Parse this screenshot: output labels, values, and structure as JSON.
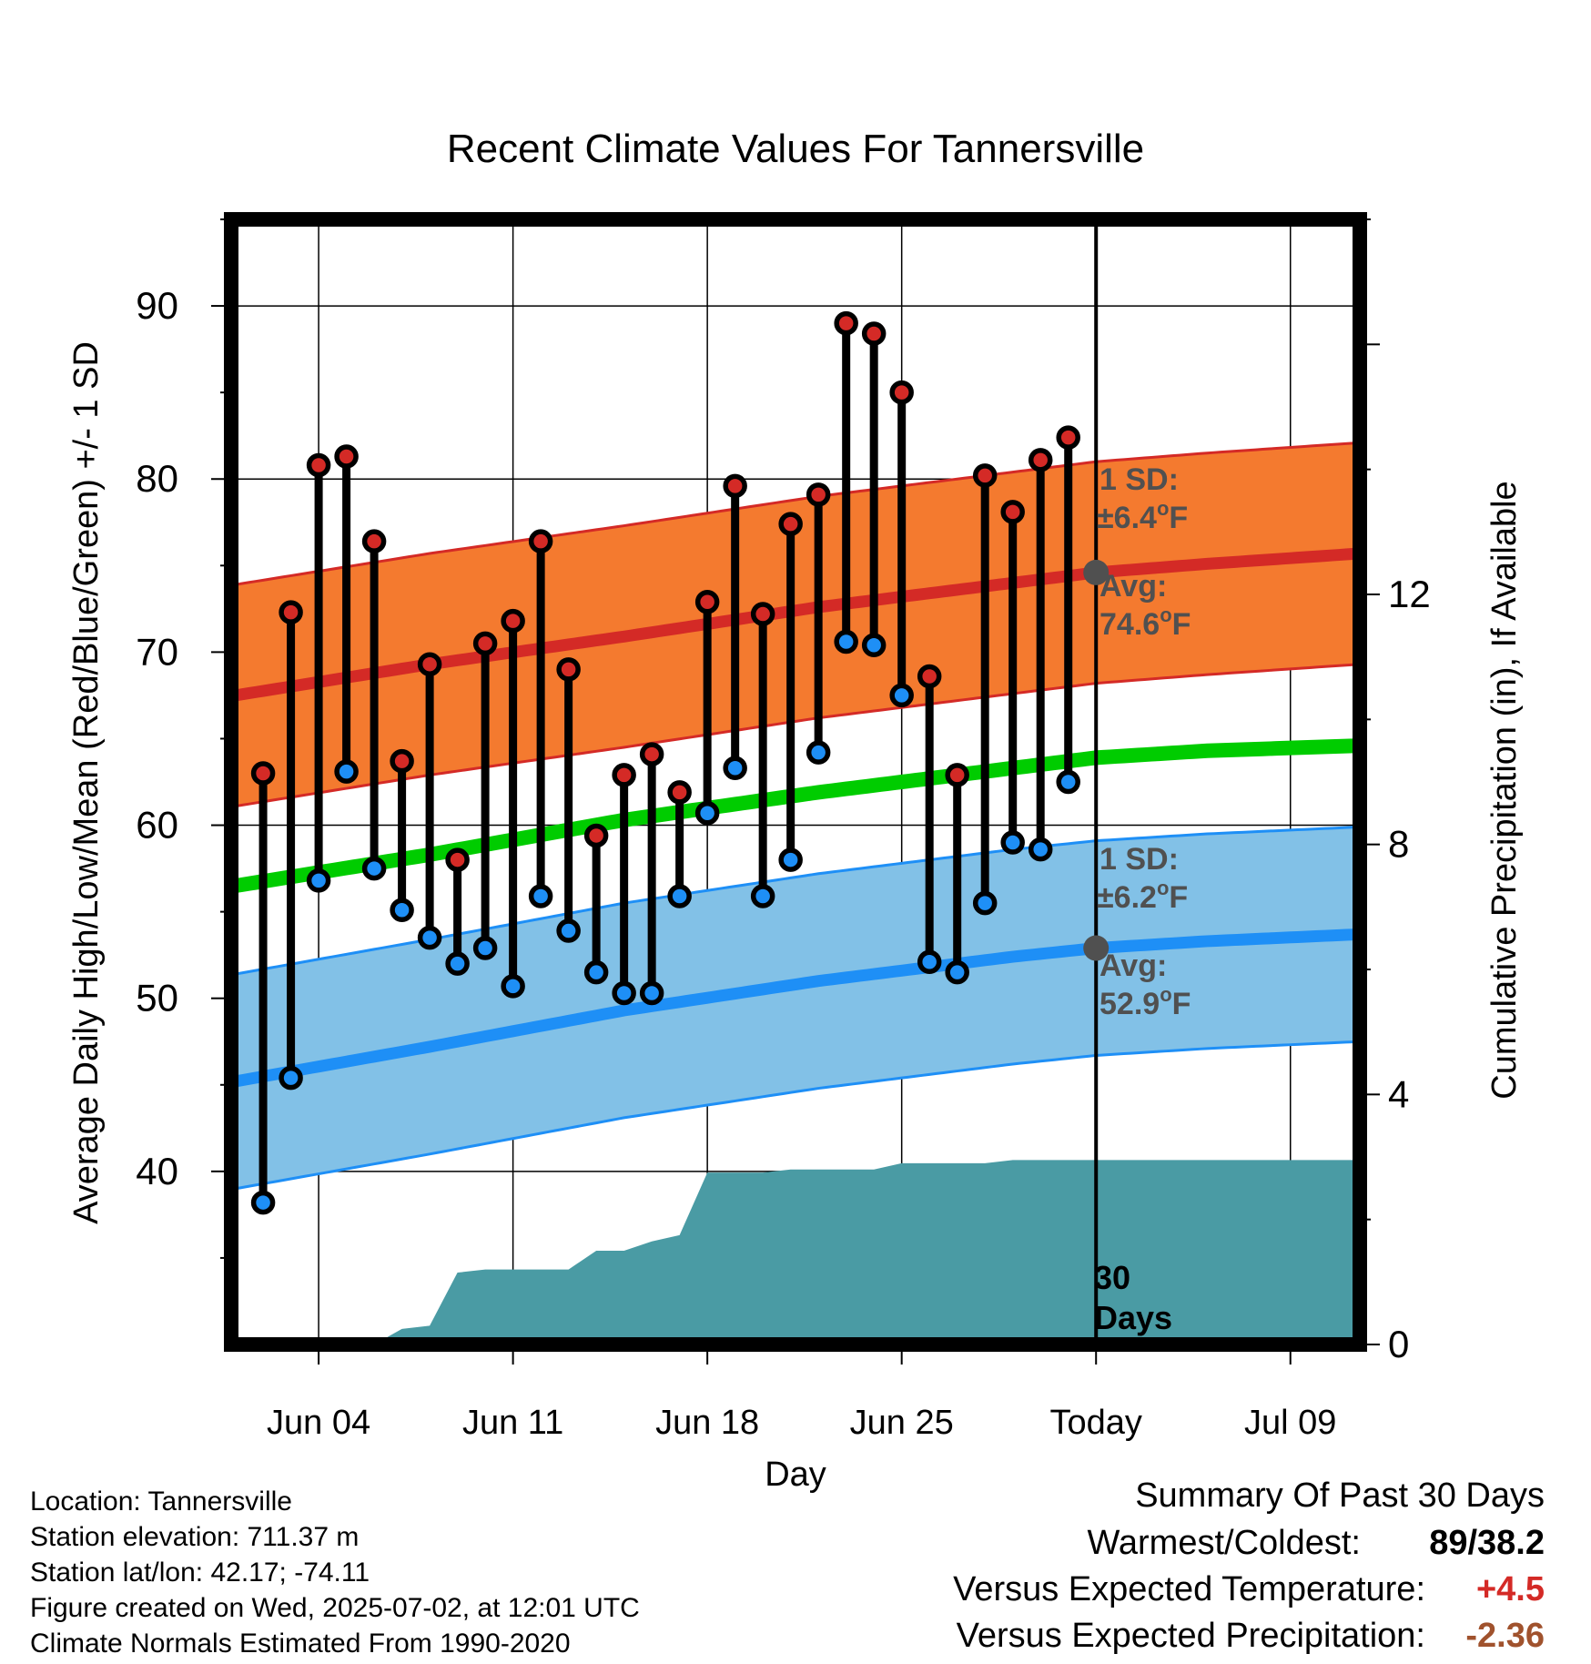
{
  "chart_data": {
    "type": "line",
    "title": "Recent Climate Values For Tannersville",
    "xlabel": "Day",
    "ylabel_left": "Average Daily High/Low/Mean (Red/Blue/Green) +/- 1 SD",
    "ylabel_right": "Cumulative Precipitation (in), If Available",
    "ylim_left": [
      30,
      95
    ],
    "ylim_right": [
      0,
      18
    ],
    "x_ticks": [
      {
        "day": 4,
        "label": "Jun 04"
      },
      {
        "day": 11,
        "label": "Jun 11"
      },
      {
        "day": 18,
        "label": "Jun 18"
      },
      {
        "day": 25,
        "label": "Jun 25"
      },
      {
        "day": 32,
        "label": "Today"
      },
      {
        "day": 39,
        "label": "Jul 09"
      }
    ],
    "y_ticks_left": [
      40,
      50,
      60,
      70,
      80,
      90
    ],
    "y_ticks_right": [
      0,
      4,
      8,
      12
    ],
    "xlim": [
      0.85,
      41.5
    ],
    "today": 32,
    "days": [
      2,
      3,
      4,
      5,
      6,
      7,
      8,
      9,
      10,
      11,
      12,
      13,
      14,
      15,
      16,
      17,
      18,
      19,
      20,
      21,
      22,
      23,
      24,
      25,
      26,
      27,
      28,
      29,
      30,
      31
    ],
    "observed_high": [
      63.0,
      72.3,
      80.8,
      81.3,
      76.4,
      63.7,
      69.3,
      58.0,
      70.5,
      71.8,
      76.4,
      69.0,
      59.4,
      62.9,
      64.1,
      61.9,
      72.9,
      79.6,
      72.2,
      77.4,
      79.1,
      89.0,
      88.4,
      85.0,
      68.6,
      62.9,
      80.2,
      78.1,
      81.1,
      82.4
    ],
    "observed_low": [
      38.2,
      45.4,
      56.8,
      63.1,
      57.5,
      55.1,
      53.5,
      52.0,
      52.9,
      50.7,
      55.9,
      53.9,
      51.5,
      50.3,
      50.3,
      55.9,
      60.7,
      63.3,
      55.9,
      58.0,
      64.2,
      70.6,
      70.4,
      67.5,
      52.1,
      51.5,
      55.5,
      59.0,
      58.6,
      62.5
    ],
    "normal_high": {
      "days": [
        1,
        8,
        15,
        22,
        29,
        32,
        36,
        41.5
      ],
      "values": [
        67.5,
        69.3,
        70.9,
        72.6,
        74.0,
        74.6,
        75.1,
        75.7
      ]
    },
    "normal_low": {
      "days": [
        1,
        8,
        15,
        22,
        29,
        32,
        36,
        41.5
      ],
      "values": [
        45.2,
        47.2,
        49.3,
        51.0,
        52.4,
        52.9,
        53.3,
        53.7
      ]
    },
    "normal_mean": {
      "days": [
        1,
        8,
        15,
        22,
        29,
        32,
        36,
        41.5
      ],
      "values": [
        56.5,
        58.3,
        60.3,
        61.9,
        63.3,
        63.9,
        64.3,
        64.6
      ]
    },
    "sd_high": 6.4,
    "sd_low": 6.2,
    "precip_cumulative": {
      "days": [
        1,
        6,
        7,
        8,
        9,
        10,
        11,
        12,
        13,
        14,
        15,
        16,
        17,
        18,
        19,
        20,
        21,
        22,
        23,
        24,
        25,
        26,
        27,
        28,
        29,
        30,
        31,
        32,
        41.5
      ],
      "values": [
        0,
        0,
        0.25,
        0.3,
        1.15,
        1.2,
        1.2,
        1.2,
        1.2,
        1.5,
        1.5,
        1.65,
        1.75,
        2.75,
        2.75,
        2.75,
        2.8,
        2.8,
        2.8,
        2.8,
        2.9,
        2.9,
        2.9,
        2.9,
        2.95,
        2.95,
        2.95,
        2.95,
        2.95
      ]
    },
    "annotations": {
      "high_sd_label": "1 SD:",
      "high_sd_value": "±6.4",
      "high_avg_label": "Avg:",
      "high_avg_value": "74.6",
      "low_sd_label": "1 SD:",
      "low_sd_value": "±6.2",
      "low_avg_label": "Avg:",
      "low_avg_value": "52.9",
      "degree_unit": "o",
      "unit_letter": "F",
      "days_count": "30",
      "days_word": "Days"
    },
    "colors": {
      "high_band": "#f47a2f",
      "high_line": "#d42a26",
      "low_band": "#82c1e7",
      "low_line": "#1e8ff6",
      "mean_line": "#00cc00",
      "precip": "#4a9ba4",
      "high_dot": "#d42a26",
      "low_dot": "#1e8ff6",
      "annotation": "#505050"
    }
  },
  "footer": {
    "location": "Location: Tannersville",
    "elevation": "Station elevation: 711.37 m",
    "latlon": "Station lat/lon: 42.17; -74.11",
    "created": "Figure created on Wed, 2025-07-02, at 12:01 UTC",
    "normals": "Climate Normals Estimated From 1990-2020"
  },
  "summary": {
    "title": "Summary Of Past 30 Days",
    "warmest_label": "Warmest/Coldest:",
    "warmest_value": "89/38.2",
    "temp_label": "Versus Expected Temperature:",
    "temp_value": "+4.5",
    "temp_color": "#d42a26",
    "precip_label": "Versus Expected Precipitation:",
    "precip_value": "-2.36",
    "precip_color": "#a0522d"
  }
}
